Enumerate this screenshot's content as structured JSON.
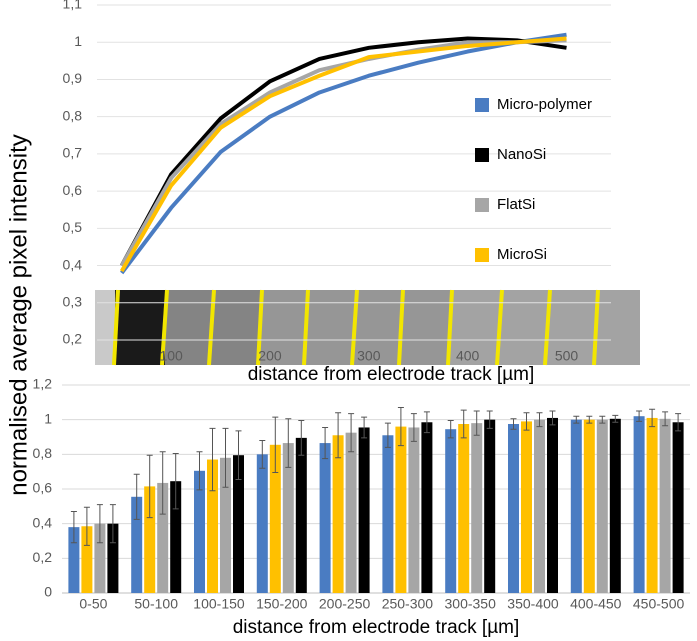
{
  "chart_data": [
    {
      "type": "line",
      "y_label": "normalised average pixel intensity",
      "x_label": "distance from electrode track [µm]",
      "x": [
        50,
        100,
        150,
        200,
        250,
        300,
        350,
        400,
        450,
        500
      ],
      "xlim": [
        25,
        545
      ],
      "xticks": [
        100,
        200,
        300,
        400,
        500
      ],
      "ylim": [
        0.2,
        1.1
      ],
      "yticks": [
        {
          "value": 0.2,
          "label": "0,2"
        },
        {
          "value": 0.3,
          "label": "0,3"
        },
        {
          "value": 0.4,
          "label": "0,4"
        },
        {
          "value": 0.5,
          "label": "0,5"
        },
        {
          "value": 0.6,
          "label": "0,6"
        },
        {
          "value": 0.7,
          "label": "0,7"
        },
        {
          "value": 0.8,
          "label": "0,8"
        },
        {
          "value": 0.9,
          "label": "0,9"
        },
        1,
        {
          "value": 1.1,
          "label": "1,1"
        }
      ],
      "grid": true,
      "series": [
        {
          "name": "Micro-polymer",
          "color": "#4a7cc2",
          "values": [
            0.38,
            0.555,
            0.705,
            0.8,
            0.865,
            0.91,
            0.945,
            0.975,
            1.0,
            1.02
          ]
        },
        {
          "name": "NanoSi",
          "color": "#000000",
          "values": [
            0.4,
            0.645,
            0.795,
            0.895,
            0.955,
            0.985,
            1.0,
            1.01,
            1.005,
            0.985
          ]
        },
        {
          "name": "FlatSi",
          "color": "#a6a6a6",
          "values": [
            0.4,
            0.635,
            0.78,
            0.865,
            0.925,
            0.955,
            0.98,
            1.0,
            1.0,
            1.005
          ]
        },
        {
          "name": "MicroSi",
          "color": "#ffc000",
          "values": [
            0.385,
            0.615,
            0.77,
            0.855,
            0.91,
            0.96,
            0.975,
            0.99,
            1.0,
            1.01
          ]
        }
      ]
    },
    {
      "type": "bar",
      "x_label": "distance from electrode track [µm]",
      "categories": [
        "0-50",
        "50-100",
        "100-150",
        "150-200",
        "200-250",
        "250-300",
        "300-350",
        "350-400",
        "400-450",
        "450-500"
      ],
      "ylim": [
        0,
        1.2
      ],
      "yticks": [
        0,
        {
          "value": 0.2,
          "label": "0,2"
        },
        {
          "value": 0.4,
          "label": "0,4"
        },
        {
          "value": 0.6,
          "label": "0,6"
        },
        {
          "value": 0.8,
          "label": "0,8"
        },
        1,
        {
          "value": 1.2,
          "label": "1,2"
        }
      ],
      "grid": true,
      "series": [
        {
          "name": "Micro-polymer",
          "color": "#4a7cc2",
          "values": [
            0.38,
            0.555,
            0.705,
            0.8,
            0.865,
            0.91,
            0.945,
            0.975,
            1.0,
            1.02
          ],
          "errors": [
            0.09,
            0.13,
            0.11,
            0.08,
            0.09,
            0.07,
            0.05,
            0.03,
            0.02,
            0.03
          ]
        },
        {
          "name": "MicroSi",
          "color": "#ffc000",
          "values": [
            0.385,
            0.615,
            0.77,
            0.855,
            0.91,
            0.96,
            0.975,
            0.99,
            1.0,
            1.01
          ],
          "errors": [
            0.11,
            0.18,
            0.18,
            0.16,
            0.13,
            0.11,
            0.08,
            0.05,
            0.02,
            0.05
          ]
        },
        {
          "name": "FlatSi",
          "color": "#a6a6a6",
          "values": [
            0.4,
            0.635,
            0.78,
            0.865,
            0.925,
            0.955,
            0.98,
            1.0,
            1.0,
            1.005
          ],
          "errors": [
            0.11,
            0.18,
            0.17,
            0.14,
            0.11,
            0.08,
            0.07,
            0.04,
            0.02,
            0.04
          ]
        },
        {
          "name": "NanoSi",
          "color": "#000000",
          "values": [
            0.4,
            0.645,
            0.795,
            0.895,
            0.955,
            0.985,
            1.0,
            1.01,
            1.005,
            0.985
          ],
          "errors": [
            0.11,
            0.16,
            0.14,
            0.1,
            0.06,
            0.06,
            0.05,
            0.04,
            0.02,
            0.05
          ]
        }
      ]
    }
  ]
}
